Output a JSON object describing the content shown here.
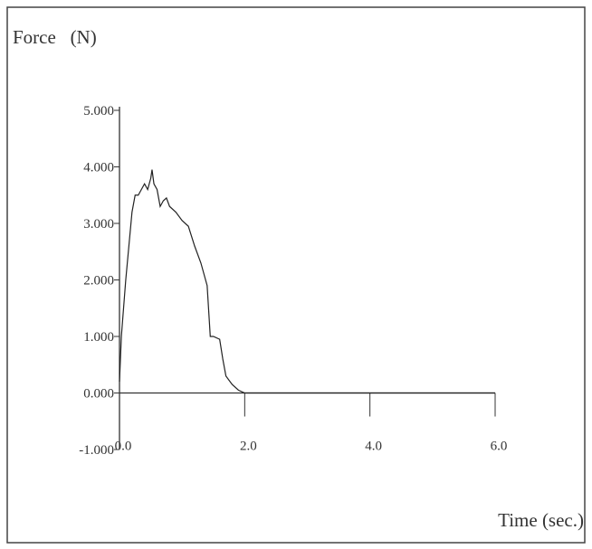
{
  "chart_data": {
    "type": "line",
    "y_label": "Force   (N)",
    "x_label": "Time (sec.)",
    "x": [
      0,
      0.03,
      0.1,
      0.15,
      0.2,
      0.25,
      0.3,
      0.35,
      0.4,
      0.45,
      0.5,
      0.52,
      0.55,
      0.6,
      0.65,
      0.7,
      0.75,
      0.8,
      0.9,
      1.0,
      1.1,
      1.2,
      1.3,
      1.4,
      1.45,
      1.5,
      1.6,
      1.65,
      1.7,
      1.8,
      1.9,
      2.0,
      6.0
    ],
    "series": [
      {
        "color": "#222222",
        "values": [
          0.2,
          1.0,
          2.0,
          2.6,
          3.2,
          3.5,
          3.5,
          3.6,
          3.7,
          3.6,
          3.8,
          3.95,
          3.7,
          3.6,
          3.3,
          3.4,
          3.45,
          3.3,
          3.2,
          3.05,
          2.95,
          2.6,
          2.3,
          1.9,
          1.0,
          1.0,
          0.95,
          0.6,
          0.3,
          0.15,
          0.05,
          0,
          0
        ]
      }
    ],
    "xlim": [
      0,
      6
    ],
    "xticks": [
      {
        "value": 0,
        "label": "0.0"
      },
      {
        "value": 2,
        "label": "2.0"
      },
      {
        "value": 4,
        "label": "4.0"
      },
      {
        "value": 6,
        "label": "6.0"
      }
    ],
    "ylim": [
      -1,
      5
    ],
    "yticks": [
      {
        "value": -1,
        "label": "-1.000"
      },
      {
        "value": 0,
        "label": "0.000"
      },
      {
        "value": 1,
        "label": "1.000"
      },
      {
        "value": 2,
        "label": "2.000"
      },
      {
        "value": 3,
        "label": "3.000"
      },
      {
        "value": 4,
        "label": "4.000"
      },
      {
        "value": 5,
        "label": "5.000"
      }
    ]
  }
}
